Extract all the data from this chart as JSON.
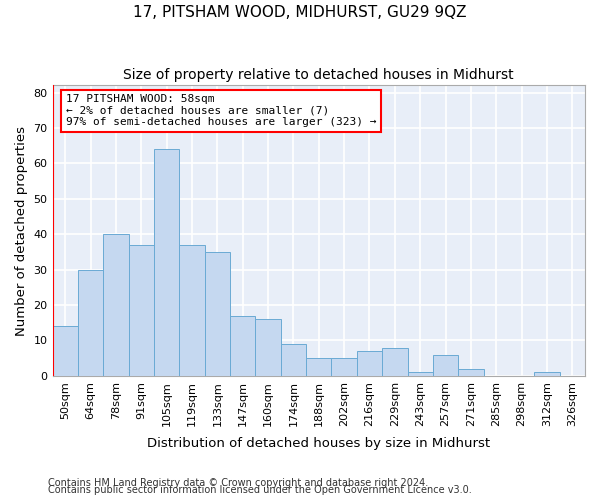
{
  "title": "17, PITSHAM WOOD, MIDHURST, GU29 9QZ",
  "subtitle": "Size of property relative to detached houses in Midhurst",
  "xlabel": "Distribution of detached houses by size in Midhurst",
  "ylabel": "Number of detached properties",
  "footnote1": "Contains HM Land Registry data © Crown copyright and database right 2024.",
  "footnote2": "Contains public sector information licensed under the Open Government Licence v3.0.",
  "bar_labels": [
    "50sqm",
    "64sqm",
    "78sqm",
    "91sqm",
    "105sqm",
    "119sqm",
    "133sqm",
    "147sqm",
    "160sqm",
    "174sqm",
    "188sqm",
    "202sqm",
    "216sqm",
    "229sqm",
    "243sqm",
    "257sqm",
    "271sqm",
    "285sqm",
    "298sqm",
    "312sqm",
    "326sqm"
  ],
  "bar_values": [
    14,
    30,
    40,
    37,
    64,
    37,
    35,
    17,
    16,
    9,
    5,
    5,
    7,
    8,
    1,
    6,
    2,
    0,
    0,
    1,
    0
  ],
  "bar_color": "#c5d8f0",
  "bar_edge_color": "#6aaad4",
  "ann_line1": "17 PITSHAM WOOD: 58sqm",
  "ann_line2": "← 2% of detached houses are smaller (7)",
  "ann_line3": "97% of semi-detached houses are larger (323) →",
  "red_line_x": -0.5,
  "ylim": [
    0,
    82
  ],
  "yticks": [
    0,
    10,
    20,
    30,
    40,
    50,
    60,
    70,
    80
  ],
  "plot_bg_color": "#e8eef8",
  "fig_bg_color": "#ffffff",
  "grid_color": "#ffffff",
  "title_fontsize": 11,
  "subtitle_fontsize": 10,
  "axis_label_fontsize": 9.5,
  "tick_fontsize": 8,
  "ann_fontsize": 8,
  "footnote_fontsize": 7
}
